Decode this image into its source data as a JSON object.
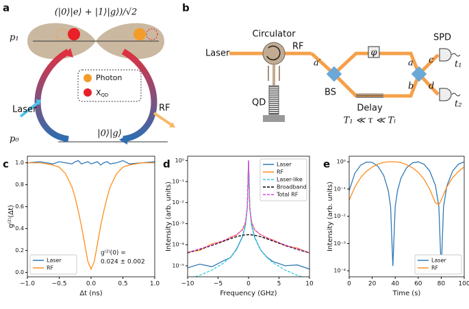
{
  "panel_labels": [
    "a",
    "b",
    "c",
    "d",
    "e"
  ],
  "diagram_a": {
    "state": "(|0⟩|e⟩ + |1⟩|g⟩)/√2",
    "upper_level": "p₁",
    "lower_level": "p₀",
    "ground_state": "|0⟩|g⟩",
    "input": "Laser",
    "output": "RF",
    "legend": [
      {
        "label": "Photon",
        "color": "#f39c2a"
      },
      {
        "label": "X",
        "sub": "QD",
        "color": "#e8202a"
      }
    ]
  },
  "diagram_b": {
    "source": "Laser",
    "circulator": "Circulator",
    "output": "RF",
    "emitter": "QD",
    "beam_splitter": "BS",
    "delay": "Delay",
    "phase": "φ",
    "ports": [
      "a′",
      "a",
      "b",
      "c",
      "d"
    ],
    "detector": "SPD",
    "times": [
      "t₁",
      "t₂"
    ],
    "condition": "T₁ ≪ τ ≪ Tₗ"
  },
  "chart_data": [
    {
      "type": "line",
      "xlabel": "Δt (ns)",
      "ylabel": "g⁽²⁾(Δt)",
      "legend": "lower-left",
      "annotation": [
        "g⁽²⁾(0) =",
        "0.024 ± 0.002"
      ],
      "x": [
        -1,
        -0.8,
        -0.6,
        -0.5,
        -0.4,
        -0.3,
        -0.25,
        -0.2,
        -0.15,
        -0.1,
        -0.05,
        0,
        0.05,
        0.1,
        0.15,
        0.2,
        0.25,
        0.3,
        0.4,
        0.5,
        0.6,
        0.8,
        1
      ],
      "series": [
        {
          "name": "Laser",
          "color": "#2f78b5",
          "values": [
            1.0,
            1.01,
            0.99,
            1.01,
            1.0,
            0.99,
            1.01,
            1.02,
            0.99,
            1.0,
            1.01,
            0.99,
            1.0,
            1.01,
            0.98,
            1.0,
            1.01,
            0.99,
            1.0,
            1.02,
            0.99,
            1.0,
            1.01
          ]
        },
        {
          "name": "RF",
          "color": "#ff8c1a",
          "values": [
            1.0,
            1.0,
            0.98,
            0.96,
            0.9,
            0.78,
            0.68,
            0.56,
            0.42,
            0.26,
            0.1,
            0.03,
            0.1,
            0.26,
            0.42,
            0.56,
            0.68,
            0.78,
            0.9,
            0.96,
            0.98,
            1.0,
            1.0
          ]
        }
      ],
      "xlim": [
        -1,
        1
      ],
      "xticks": [
        {
          "value": -1,
          "label": "−1.0"
        },
        {
          "value": -0.5,
          "label": "−0.5"
        },
        {
          "value": 0,
          "label": "0.0"
        },
        {
          "value": 0.5,
          "label": "0.5"
        },
        {
          "value": 1,
          "label": "1.0"
        }
      ],
      "ylim": [
        -0.04,
        1.06
      ],
      "yticks": [
        {
          "value": 0,
          "label": "0.0"
        },
        {
          "value": 0.2,
          "label": "0.2"
        },
        {
          "value": 0.4,
          "label": "0.4"
        },
        {
          "value": 0.6,
          "label": "0.6"
        },
        {
          "value": 0.8,
          "label": "0.8"
        },
        {
          "value": 1,
          "label": "1.0"
        }
      ]
    },
    {
      "type": "line",
      "log_y": true,
      "xlabel": "Frequency (GHz)",
      "ylabel": "Intensity (arb. units)",
      "legend": "upper-right",
      "x": [
        -10,
        -8,
        -6,
        -4,
        -3,
        -2,
        -1,
        -0.5,
        -0.2,
        0,
        0.2,
        0.5,
        1,
        2,
        3,
        4,
        6,
        8,
        10
      ],
      "series": [
        {
          "name": "Laser",
          "color": "#2f78b5",
          "values": [
            8e-06,
            1.2e-05,
            9e-06,
            1.8e-05,
            2.4e-05,
            6e-05,
            0.00024,
            0.0009,
            0.006,
            1,
            0.0058,
            0.00088,
            0.00023,
            5.5e-05,
            2.6e-05,
            1.6e-05,
            1e-05,
            1.1e-05,
            7e-06
          ]
        },
        {
          "name": "RF",
          "color": "#ff8c1a",
          "values": [
            4.5e-05,
            5.5e-05,
            0.00011,
            0.00015,
            0.00023,
            0.00028,
            0.00053,
            0.0011,
            0.0062,
            0.9,
            0.006,
            0.0012,
            0.0005,
            0.0003,
            0.00021,
            0.00017,
            9e-05,
            7e-05,
            4e-05
          ]
        },
        {
          "name": "Laser-like",
          "color": "#33ccdd",
          "dashed": true,
          "values": [
            2.3e-06,
            3.5e-06,
            6.3e-06,
            1.4e-05,
            2.5e-05,
            5.6e-05,
            0.000225,
            0.0009,
            0.0056,
            1,
            0.0056,
            0.0009,
            0.000225,
            5.6e-05,
            2.5e-05,
            1.4e-05,
            6.3e-06,
            3.5e-06,
            2.3e-06
          ]
        },
        {
          "name": "Broadband",
          "color": "#000000",
          "dashed": true,
          "values": [
            4.1e-05,
            6e-05,
            9.2e-05,
            0.00015,
            0.000192,
            0.00024,
            0.000282,
            0.000295,
            0.000299,
            0.0003,
            0.000299,
            0.000295,
            0.000282,
            0.00024,
            0.000192,
            0.00015,
            9.2e-05,
            6e-05,
            4.1e-05
          ]
        },
        {
          "name": "Total RF",
          "color": "#e040e0",
          "dashed": true,
          "values": [
            4.3e-05,
            6.4e-05,
            9.8e-05,
            0.000164,
            0.000217,
            0.000296,
            0.000507,
            0.0012,
            0.0059,
            1,
            0.0059,
            0.0012,
            0.000507,
            0.000296,
            0.000217,
            0.000164,
            9.8e-05,
            6.4e-05,
            4.3e-05
          ]
        }
      ],
      "xlim": [
        -10,
        10
      ],
      "xticks": [
        {
          "value": -10,
          "label": "−10"
        },
        {
          "value": -5,
          "label": "−5"
        },
        0,
        5,
        10
      ],
      "ylim": [
        3e-06,
        1.6
      ],
      "yticks": [
        {
          "value": 1e-05,
          "label": "10⁻⁵"
        },
        {
          "value": 0.0001,
          "label": "10⁻⁴"
        },
        {
          "value": 0.001,
          "label": "10⁻³"
        },
        {
          "value": 0.01,
          "label": "10⁻²"
        },
        {
          "value": 0.1,
          "label": "10⁻¹"
        },
        {
          "value": 1,
          "label": "10⁰"
        }
      ]
    },
    {
      "type": "line",
      "log_y": true,
      "xlabel": "Time (s)",
      "ylabel": "Intensity (arb. units)",
      "legend": "lower-right",
      "x": [
        0,
        5,
        10,
        15,
        20,
        25,
        30,
        34,
        36,
        38,
        40,
        42,
        45,
        50,
        55,
        60,
        65,
        70,
        75,
        78,
        80,
        82,
        85,
        90,
        95,
        100
      ],
      "series": [
        {
          "name": "Laser",
          "color": "#2f78b5",
          "values": [
            0.087,
            0.388,
            0.75,
            0.978,
            0.951,
            0.683,
            0.317,
            0.087,
            0.0223,
            0.00015,
            0.0222,
            0.087,
            0.25,
            0.61,
            0.914,
            0.994,
            0.812,
            0.463,
            0.135,
            0.022,
            0.0001,
            0.0225,
            0.133,
            0.462,
            0.817,
            0.994
          ]
        },
        {
          "name": "RF",
          "color": "#ff8c1a",
          "values": [
            0.039,
            0.12,
            0.263,
            0.446,
            0.64,
            0.82,
            0.95,
            1.0,
            1.0,
            1.0,
            1.0,
            0.98,
            0.93,
            0.785,
            0.6,
            0.41,
            0.23,
            0.098,
            0.031,
            0.027,
            0.039,
            0.063,
            0.12,
            0.263,
            0.446,
            0.64
          ]
        }
      ],
      "xlim": [
        0,
        100
      ],
      "xticks": [
        0,
        20,
        40,
        60,
        80,
        100
      ],
      "ylim": [
        6e-05,
        1.6
      ],
      "yticks": [
        {
          "value": 0.0001,
          "label": "10⁻⁴"
        },
        {
          "value": 0.001,
          "label": "10⁻³"
        },
        {
          "value": 0.01,
          "label": "10⁻²"
        },
        {
          "value": 0.1,
          "label": "10⁻¹"
        },
        {
          "value": 1,
          "label": "10⁰"
        }
      ]
    }
  ]
}
